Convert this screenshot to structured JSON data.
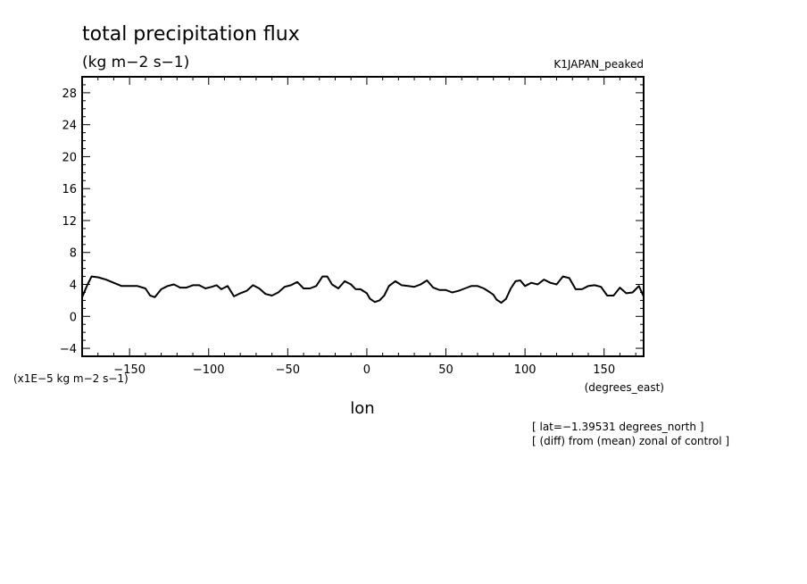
{
  "chart_data": {
    "type": "line",
    "title": "total precipitation flux",
    "subtitle": "(kg m−2 s−1)",
    "experiment": "K1JAPAN_peaked",
    "xlabel": "lon",
    "x_units": "(degrees_east)",
    "y_scale_label": "(x1E−5 kg m−2 s−1)",
    "notes": [
      "[ lat=−1.39531 degrees_north ]",
      "[ (diff) from (mean) zonal of control ]"
    ],
    "xlim": [
      -180,
      175
    ],
    "ylim": [
      -5,
      30
    ],
    "x_ticks": [
      -150,
      -100,
      -50,
      0,
      50,
      100,
      150
    ],
    "x_tick_labels": [
      "−150",
      "−100",
      "−50",
      "0",
      "50",
      "100",
      "150"
    ],
    "y_ticks": [
      -4,
      0,
      4,
      8,
      12,
      16,
      20,
      24,
      28
    ],
    "y_tick_labels": [
      "−4",
      "0",
      "4",
      "8",
      "12",
      "16",
      "20",
      "24",
      "28"
    ],
    "grid": false,
    "series": [
      {
        "x": [
          -180,
          -177,
          -174,
          -170,
          -165,
          -160,
          -155,
          -150,
          -145,
          -140,
          -137,
          -134,
          -130,
          -126,
          -122,
          -118,
          -114,
          -110,
          -106,
          -102,
          -98,
          -95,
          -92,
          -88,
          -84,
          -80,
          -76,
          -72,
          -68,
          -64,
          -60,
          -56,
          -52,
          -48,
          -44,
          -40,
          -36,
          -32,
          -28,
          -25,
          -22,
          -18,
          -14,
          -10,
          -7,
          -4,
          0,
          2,
          5,
          8,
          11,
          14,
          18,
          22,
          26,
          30,
          34,
          38,
          42,
          46,
          50,
          54,
          58,
          62,
          66,
          70,
          74,
          78,
          80,
          82,
          85,
          88,
          91,
          94,
          97,
          100,
          104,
          108,
          112,
          116,
          120,
          124,
          128,
          132,
          136,
          140,
          144,
          148,
          152,
          156,
          160,
          164,
          168,
          172,
          175
        ],
        "y": [
          2.4,
          3.8,
          5.0,
          4.9,
          4.6,
          4.2,
          3.8,
          3.8,
          3.8,
          3.5,
          2.6,
          2.4,
          3.4,
          3.8,
          4.0,
          3.6,
          3.6,
          3.9,
          3.9,
          3.5,
          3.7,
          3.9,
          3.4,
          3.8,
          2.5,
          2.9,
          3.2,
          3.9,
          3.5,
          2.8,
          2.6,
          3.0,
          3.7,
          3.9,
          4.3,
          3.5,
          3.5,
          3.8,
          5.0,
          5.0,
          4.0,
          3.5,
          4.4,
          4.0,
          3.4,
          3.4,
          2.9,
          2.2,
          1.8,
          2.0,
          2.6,
          3.8,
          4.4,
          3.9,
          3.8,
          3.7,
          4.0,
          4.5,
          3.6,
          3.3,
          3.3,
          3.0,
          3.2,
          3.5,
          3.8,
          3.8,
          3.5,
          3.0,
          2.7,
          2.1,
          1.7,
          2.2,
          3.5,
          4.4,
          4.5,
          3.8,
          4.2,
          4.0,
          4.6,
          4.2,
          4.0,
          5.0,
          4.8,
          3.4,
          3.4,
          3.8,
          3.9,
          3.7,
          2.6,
          2.6,
          3.6,
          2.9,
          3.0,
          3.8,
          2.5
        ]
      }
    ]
  }
}
